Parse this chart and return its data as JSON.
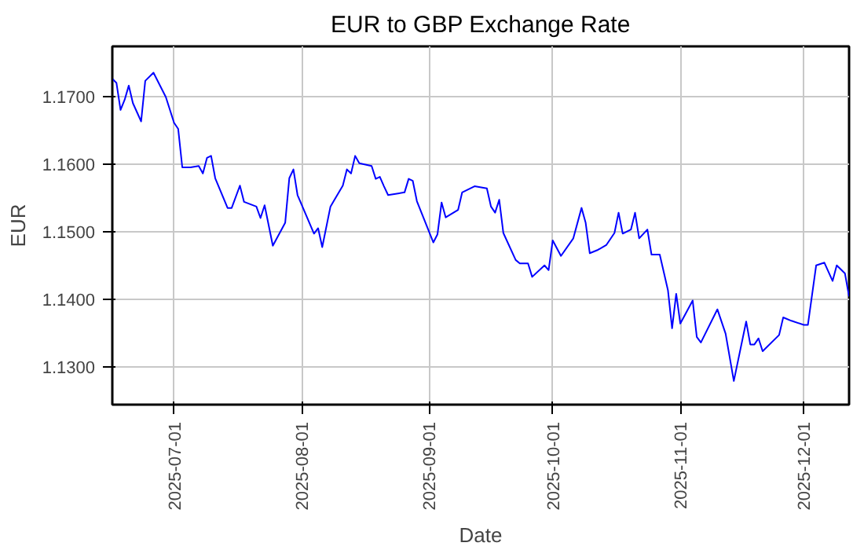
{
  "chart_data": {
    "type": "line",
    "title": "EUR to GBP Exchange Rate",
    "xlabel": "Date",
    "ylabel": "EUR",
    "x": [
      "2025-06-16",
      "2025-06-17",
      "2025-06-18",
      "2025-06-19",
      "2025-06-20",
      "2025-06-21",
      "2025-06-23",
      "2025-06-24",
      "2025-06-26",
      "2025-06-29",
      "2025-07-01",
      "2025-07-02",
      "2025-07-03",
      "2025-07-05",
      "2025-07-07",
      "2025-07-08",
      "2025-07-09",
      "2025-07-10",
      "2025-07-11",
      "2025-07-14",
      "2025-07-15",
      "2025-07-17",
      "2025-07-18",
      "2025-07-21",
      "2025-07-22",
      "2025-07-23",
      "2025-07-25",
      "2025-07-28",
      "2025-07-29",
      "2025-07-30",
      "2025-07-31",
      "2025-08-04",
      "2025-08-05",
      "2025-08-06",
      "2025-08-08",
      "2025-08-11",
      "2025-08-12",
      "2025-08-13",
      "2025-08-14",
      "2025-08-15",
      "2025-08-18",
      "2025-08-19",
      "2025-08-20",
      "2025-08-21",
      "2025-08-22",
      "2025-08-26",
      "2025-08-27",
      "2025-08-28",
      "2025-08-29",
      "2025-09-02",
      "2025-09-03",
      "2025-09-04",
      "2025-09-05",
      "2025-09-08",
      "2025-09-09",
      "2025-09-12",
      "2025-09-15",
      "2025-09-16",
      "2025-09-17",
      "2025-09-18",
      "2025-09-19",
      "2025-09-22",
      "2025-09-23",
      "2025-09-25",
      "2025-09-26",
      "2025-09-29",
      "2025-09-30",
      "2025-10-01",
      "2025-10-03",
      "2025-10-06",
      "2025-10-08",
      "2025-10-09",
      "2025-10-10",
      "2025-10-12",
      "2025-10-14",
      "2025-10-16",
      "2025-10-17",
      "2025-10-18",
      "2025-10-20",
      "2025-10-21",
      "2025-10-22",
      "2025-10-24",
      "2025-10-25",
      "2025-10-27",
      "2025-10-29",
      "2025-10-30",
      "2025-10-31",
      "2025-11-01",
      "2025-11-04",
      "2025-11-05",
      "2025-11-06",
      "2025-11-10",
      "2025-11-12",
      "2025-11-14",
      "2025-11-17",
      "2025-11-18",
      "2025-11-19",
      "2025-11-20",
      "2025-11-21",
      "2025-11-25",
      "2025-11-26",
      "2025-11-28",
      "2025-12-01",
      "2025-12-02",
      "2025-12-04",
      "2025-12-06",
      "2025-12-08",
      "2025-12-09",
      "2025-12-11",
      "2025-12-12"
    ],
    "series": [
      {
        "color": "#0000ff",
        "values": [
          1.1726,
          1.172,
          1.168,
          1.1695,
          1.1716,
          1.169,
          1.1663,
          1.1723,
          1.1735,
          1.1699,
          1.1661,
          1.1652,
          1.1595,
          1.1595,
          1.1597,
          1.1586,
          1.1609,
          1.1612,
          1.1579,
          1.1535,
          1.1535,
          1.1568,
          1.1544,
          1.1537,
          1.152,
          1.1539,
          1.1479,
          1.1513,
          1.1579,
          1.1592,
          1.1554,
          1.1497,
          1.1505,
          1.1477,
          1.1537,
          1.1568,
          1.1592,
          1.1586,
          1.1612,
          1.1601,
          1.1597,
          1.1578,
          1.1581,
          1.1567,
          1.1554,
          1.1558,
          1.1578,
          1.1575,
          1.1545,
          1.1484,
          1.1496,
          1.1543,
          1.1521,
          1.1532,
          1.1558,
          1.1567,
          1.1564,
          1.1537,
          1.1528,
          1.1547,
          1.1498,
          1.1458,
          1.1453,
          1.1453,
          1.1433,
          1.145,
          1.1443,
          1.1487,
          1.1464,
          1.149,
          1.1535,
          1.1513,
          1.1468,
          1.1473,
          1.148,
          1.1498,
          1.1528,
          1.1497,
          1.1503,
          1.1528,
          1.149,
          1.1503,
          1.1466,
          1.1466,
          1.1413,
          1.1357,
          1.1408,
          1.1364,
          1.1398,
          1.1344,
          1.1336,
          1.1385,
          1.1349,
          1.1279,
          1.1367,
          1.1333,
          1.1333,
          1.1342,
          1.1323,
          1.1347,
          1.1373,
          1.1368,
          1.1362,
          1.1362,
          1.145,
          1.1454,
          1.1427,
          1.145,
          1.1438,
          1.1404
        ]
      }
    ],
    "xlim": [
      "2025-06-16",
      "2025-12-12"
    ],
    "xticks": [
      "2025-07-01",
      "2025-08-01",
      "2025-09-01",
      "2025-10-01",
      "2025-11-01",
      "2025-12-01"
    ],
    "ylim": [
      1.1244,
      1.1774
    ],
    "yticks": [
      {
        "value": 1.13,
        "label": "1.1300"
      },
      {
        "value": 1.14,
        "label": "1.1400"
      },
      {
        "value": 1.15,
        "label": "1.1500"
      },
      {
        "value": 1.16,
        "label": "1.1600"
      },
      {
        "value": 1.17,
        "label": "1.1700"
      }
    ],
    "grid": true,
    "marker": "none",
    "line_style": "solid"
  }
}
